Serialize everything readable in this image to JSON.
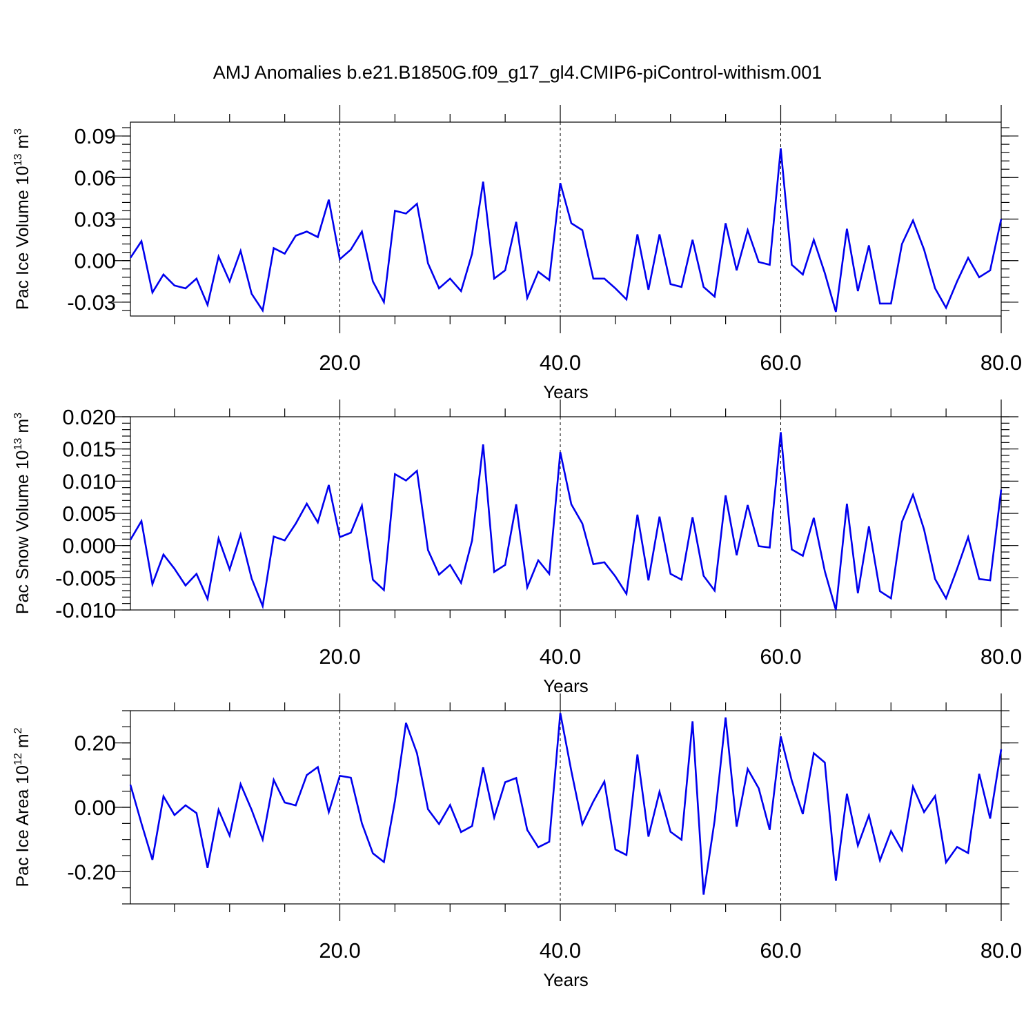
{
  "title": "AMJ Anomalies b.e21.B1850G.f09_g17_gl4.CMIP6-piControl-withism.001",
  "colors": {
    "line": "#0000ee",
    "axis": "#000000",
    "background": "#ffffff"
  },
  "chart_data": [
    {
      "type": "line",
      "ylabel_prefix": "Pac Ice Volume 10",
      "ylabel_exp": "13",
      "ylabel_unit": " m",
      "ylabel_unit_exp": "3",
      "xlabel": "Years",
      "xlim": [
        1,
        80
      ],
      "ylim": [
        -0.04,
        0.1
      ],
      "grid": "dashed vertical at 20, 40, 60",
      "x_ticks": [
        20,
        40,
        60,
        80
      ],
      "x_tick_labels": [
        "20.0",
        "40.0",
        "60.0",
        "80.0"
      ],
      "y_ticks": [
        -0.03,
        0.0,
        0.03,
        0.06,
        0.09
      ],
      "y_tick_labels": [
        "-0.03",
        "0.00",
        "0.03",
        "0.06",
        "0.09"
      ],
      "y_minor_step": 0.006,
      "x": [
        1,
        2,
        3,
        4,
        5,
        6,
        7,
        8,
        9,
        10,
        11,
        12,
        13,
        14,
        15,
        16,
        17,
        18,
        19,
        20,
        21,
        22,
        23,
        24,
        25,
        26,
        27,
        28,
        29,
        30,
        31,
        32,
        33,
        34,
        35,
        36,
        37,
        38,
        39,
        40,
        41,
        42,
        43,
        44,
        45,
        46,
        47,
        48,
        49,
        50,
        51,
        52,
        53,
        54,
        55,
        56,
        57,
        58,
        59,
        60,
        61,
        62,
        63,
        64,
        65,
        66,
        67,
        68,
        69,
        70,
        71,
        72,
        73,
        74,
        75,
        76,
        77,
        78,
        79,
        80
      ],
      "values": [
        0.002,
        0.014,
        -0.023,
        -0.01,
        -0.018,
        -0.02,
        -0.013,
        -0.032,
        0.003,
        -0.015,
        0.007,
        -0.024,
        -0.036,
        0.009,
        0.005,
        0.018,
        0.021,
        0.017,
        0.044,
        0.001,
        0.008,
        0.021,
        -0.015,
        -0.03,
        0.036,
        0.034,
        0.041,
        -0.002,
        -0.02,
        -0.013,
        -0.022,
        0.005,
        0.057,
        -0.013,
        -0.007,
        0.028,
        -0.027,
        -0.008,
        -0.014,
        0.056,
        0.027,
        0.022,
        -0.013,
        -0.013,
        -0.02,
        -0.028,
        0.019,
        -0.021,
        0.019,
        -0.017,
        -0.019,
        0.015,
        -0.019,
        -0.026,
        0.027,
        -0.007,
        0.022,
        -0.001,
        -0.003,
        0.081,
        -0.003,
        -0.01,
        0.015,
        -0.009,
        -0.037,
        0.023,
        -0.022,
        0.011,
        -0.031,
        -0.031,
        0.012,
        0.029,
        0.008,
        -0.02,
        -0.034,
        -0.015,
        0.002,
        -0.012,
        -0.007,
        0.03
      ]
    },
    {
      "type": "line",
      "ylabel_prefix": "Pac Snow Volume 10",
      "ylabel_exp": "13",
      "ylabel_unit": " m",
      "ylabel_unit_exp": "3",
      "xlabel": "Years",
      "xlim": [
        1,
        80
      ],
      "ylim": [
        -0.01,
        0.02
      ],
      "grid": "dashed vertical at 20, 40, 60",
      "x_ticks": [
        20,
        40,
        60,
        80
      ],
      "x_tick_labels": [
        "20.0",
        "40.0",
        "60.0",
        "80.0"
      ],
      "y_ticks": [
        -0.01,
        -0.005,
        0.0,
        0.005,
        0.01,
        0.015,
        0.02
      ],
      "y_tick_labels": [
        "-0.010",
        "-0.005",
        "0.000",
        "0.005",
        "0.010",
        "0.015",
        "0.020"
      ],
      "y_minor_step": 0.001,
      "x": [
        1,
        2,
        3,
        4,
        5,
        6,
        7,
        8,
        9,
        10,
        11,
        12,
        13,
        14,
        15,
        16,
        17,
        18,
        19,
        20,
        21,
        22,
        23,
        24,
        25,
        26,
        27,
        28,
        29,
        30,
        31,
        32,
        33,
        34,
        35,
        36,
        37,
        38,
        39,
        40,
        41,
        42,
        43,
        44,
        45,
        46,
        47,
        48,
        49,
        50,
        51,
        52,
        53,
        54,
        55,
        56,
        57,
        58,
        59,
        60,
        61,
        62,
        63,
        64,
        65,
        66,
        67,
        68,
        69,
        70,
        71,
        72,
        73,
        74,
        75,
        76,
        77,
        78,
        79,
        80
      ],
      "values": [
        0.0009,
        0.0038,
        -0.006,
        -0.0014,
        -0.0036,
        -0.0062,
        -0.0044,
        -0.0083,
        0.0011,
        -0.0037,
        0.0017,
        -0.0051,
        -0.0094,
        0.0014,
        0.0008,
        0.0034,
        0.0065,
        0.0036,
        0.0094,
        0.0013,
        0.002,
        0.0062,
        -0.0053,
        -0.0069,
        0.0111,
        0.0101,
        0.0116,
        -0.0007,
        -0.0045,
        -0.003,
        -0.0058,
        0.0008,
        0.0157,
        -0.0041,
        -0.003,
        0.0064,
        -0.0065,
        -0.0023,
        -0.0044,
        0.0145,
        0.0064,
        0.0034,
        -0.0029,
        -0.0026,
        -0.0048,
        -0.0075,
        0.0048,
        -0.0054,
        0.0045,
        -0.0044,
        -0.0053,
        0.0044,
        -0.0047,
        -0.007,
        0.0078,
        -0.0015,
        0.0063,
        -0.0001,
        -0.0003,
        0.0176,
        -0.0006,
        -0.0016,
        0.0043,
        -0.004,
        -0.01,
        0.0065,
        -0.0074,
        0.003,
        -0.0071,
        -0.0082,
        0.0037,
        0.0079,
        0.0025,
        -0.0052,
        -0.0082,
        -0.0036,
        0.0013,
        -0.0052,
        -0.0054,
        0.0087
      ]
    },
    {
      "type": "line",
      "ylabel_prefix": "Pac Ice Area 10",
      "ylabel_exp": "12",
      "ylabel_unit": " m",
      "ylabel_unit_exp": "2",
      "xlabel": "Years",
      "xlim": [
        1,
        80
      ],
      "ylim": [
        -0.3,
        0.3
      ],
      "grid": "dashed vertical at 20, 40, 60",
      "x_ticks": [
        20,
        40,
        60,
        80
      ],
      "x_tick_labels": [
        "20.0",
        "40.0",
        "60.0",
        "80.0"
      ],
      "y_ticks": [
        -0.2,
        0.0,
        0.2
      ],
      "y_tick_labels": [
        "-0.20",
        "0.00",
        "0.20"
      ],
      "y_minor_step": 0.05,
      "x": [
        1,
        2,
        3,
        4,
        5,
        6,
        7,
        8,
        9,
        10,
        11,
        12,
        13,
        14,
        15,
        16,
        17,
        18,
        19,
        20,
        21,
        22,
        23,
        24,
        25,
        26,
        27,
        28,
        29,
        30,
        31,
        32,
        33,
        34,
        35,
        36,
        37,
        38,
        39,
        40,
        41,
        42,
        43,
        44,
        45,
        46,
        47,
        48,
        49,
        50,
        51,
        52,
        53,
        54,
        55,
        56,
        57,
        58,
        59,
        60,
        61,
        62,
        63,
        64,
        65,
        66,
        67,
        68,
        69,
        70,
        71,
        72,
        73,
        74,
        75,
        76,
        77,
        78,
        79,
        80
      ],
      "values": [
        0.07,
        -0.05,
        -0.163,
        0.034,
        -0.024,
        0.006,
        -0.018,
        -0.188,
        -0.008,
        -0.088,
        0.072,
        -0.008,
        -0.1,
        0.085,
        0.015,
        0.006,
        0.1,
        0.125,
        -0.015,
        0.098,
        0.092,
        -0.05,
        -0.143,
        -0.17,
        0.02,
        0.262,
        0.168,
        -0.006,
        -0.052,
        0.007,
        -0.077,
        -0.058,
        0.124,
        -0.032,
        0.078,
        0.091,
        -0.07,
        -0.124,
        -0.107,
        0.293,
        0.113,
        -0.053,
        0.018,
        0.08,
        -0.131,
        -0.148,
        0.164,
        -0.091,
        0.048,
        -0.076,
        -0.101,
        0.267,
        -0.271,
        -0.041,
        0.279,
        -0.06,
        0.119,
        0.059,
        -0.07,
        0.22,
        0.083,
        -0.021,
        0.168,
        0.139,
        -0.228,
        0.042,
        -0.119,
        -0.025,
        -0.165,
        -0.074,
        -0.134,
        0.064,
        -0.015,
        0.035,
        -0.171,
        -0.123,
        -0.142,
        0.104,
        -0.035,
        0.18
      ]
    }
  ]
}
